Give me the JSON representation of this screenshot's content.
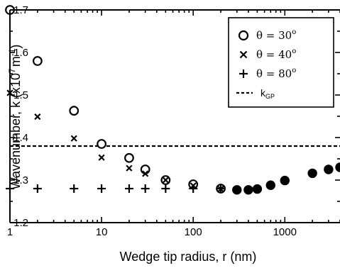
{
  "chart_data": {
    "type": "scatter",
    "xlabel": "Wedge tip radius, r (nm)",
    "ylabel_main": "Wavenumber, k (x10",
    "ylabel_exp": "7",
    "ylabel_unit": "m",
    "ylabel_unit_exp": "-1",
    "ylabel_close": ")",
    "xscale": "log",
    "xlim": [
      1,
      4000
    ],
    "ylim": [
      1.2,
      1.7
    ],
    "x_ticks": [
      {
        "value": 1,
        "label": "1"
      },
      {
        "value": 10,
        "label": "10"
      },
      {
        "value": 100,
        "label": "100"
      },
      {
        "value": 1000,
        "label": "1000"
      }
    ],
    "y_ticks": [
      {
        "value": 1.2,
        "label": "1.2"
      },
      {
        "value": 1.3,
        "label": "1.3"
      },
      {
        "value": 1.4,
        "label": "1.4"
      },
      {
        "value": 1.5,
        "label": "1.5"
      },
      {
        "value": 1.6,
        "label": "1.6"
      },
      {
        "value": 1.7,
        "label": "1.7"
      }
    ],
    "legend_position": "top-right",
    "series": [
      {
        "name": "θ = 30°",
        "marker": "circle",
        "points": [
          {
            "x": 1,
            "y": 1.7
          },
          {
            "x": 2,
            "y": 1.58
          },
          {
            "x": 5,
            "y": 1.463
          },
          {
            "x": 10,
            "y": 1.385
          },
          {
            "x": 20,
            "y": 1.352
          },
          {
            "x": 30,
            "y": 1.325
          },
          {
            "x": 50,
            "y": 1.3
          },
          {
            "x": 100,
            "y": 1.29
          },
          {
            "x": 200,
            "y": 1.28
          }
        ],
        "filled_points": [
          {
            "x": 300,
            "y": 1.277
          },
          {
            "x": 400,
            "y": 1.277
          },
          {
            "x": 500,
            "y": 1.279
          },
          {
            "x": 700,
            "y": 1.288
          },
          {
            "x": 1000,
            "y": 1.299
          },
          {
            "x": 2000,
            "y": 1.316
          },
          {
            "x": 3000,
            "y": 1.325
          },
          {
            "x": 4000,
            "y": 1.33
          }
        ]
      },
      {
        "name": "θ = 40°",
        "marker": "x",
        "points": [
          {
            "x": 1,
            "y": 1.505
          },
          {
            "x": 2,
            "y": 1.449
          },
          {
            "x": 5,
            "y": 1.398
          },
          {
            "x": 10,
            "y": 1.353
          },
          {
            "x": 20,
            "y": 1.328
          },
          {
            "x": 30,
            "y": 1.315
          },
          {
            "x": 50,
            "y": 1.3
          },
          {
            "x": 100,
            "y": 1.287
          },
          {
            "x": 200,
            "y": 1.279
          }
        ]
      },
      {
        "name": "θ = 80°",
        "marker": "plus",
        "points": [
          {
            "x": 1,
            "y": 1.28
          },
          {
            "x": 2,
            "y": 1.28
          },
          {
            "x": 5,
            "y": 1.28
          },
          {
            "x": 10,
            "y": 1.28
          },
          {
            "x": 20,
            "y": 1.28
          },
          {
            "x": 30,
            "y": 1.28
          },
          {
            "x": 50,
            "y": 1.28
          },
          {
            "x": 100,
            "y": 1.28
          },
          {
            "x": 200,
            "y": 1.28
          }
        ]
      }
    ],
    "reference_line": {
      "name_main": "k",
      "name_sub": "GP",
      "y": 1.38,
      "style": "dashed"
    },
    "legend_labels": [
      {
        "main": "θ = 30",
        "sup": "o"
      },
      {
        "main": "θ = 40",
        "sup": "o"
      },
      {
        "main": "θ = 80",
        "sup": "o"
      }
    ]
  }
}
